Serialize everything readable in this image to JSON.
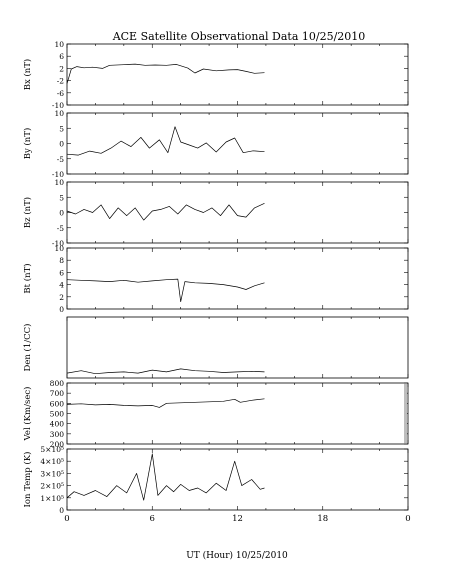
{
  "figure": {
    "title": "ACE Satellite Observational Data   10/25/2010",
    "x_label": "UT (Hour)   10/25/2010",
    "x_ticks": [
      "0",
      "6",
      "12",
      "18",
      "0"
    ]
  },
  "chart_data": [
    {
      "type": "line",
      "ylabel": "Bx (nT)",
      "xlim": [
        0,
        24
      ],
      "ylim": [
        -10,
        10
      ],
      "yticks": [
        "10",
        "6",
        "2",
        "-2",
        "-6",
        "-10"
      ],
      "grid": false,
      "series": [
        {
          "values": [
            [
              0.0,
              -3
            ],
            [
              0.3,
              1.8
            ],
            [
              0.7,
              2.6
            ],
            [
              1.2,
              2.2
            ],
            [
              1.8,
              2.4
            ],
            [
              2.5,
              2.0
            ],
            [
              3.0,
              3.0
            ],
            [
              4.0,
              3.2
            ],
            [
              4.8,
              3.4
            ],
            [
              5.5,
              3.0
            ],
            [
              6.2,
              3.1
            ],
            [
              7.0,
              3.0
            ],
            [
              7.7,
              3.3
            ],
            [
              8.5,
              2.1
            ],
            [
              9.0,
              0.5
            ],
            [
              9.6,
              1.8
            ],
            [
              10.5,
              1.2
            ],
            [
              11.4,
              1.5
            ],
            [
              12.0,
              1.6
            ],
            [
              12.6,
              1.0
            ],
            [
              13.2,
              0.4
            ],
            [
              13.9,
              0.6
            ]
          ]
        }
      ]
    },
    {
      "type": "line",
      "ylabel": "By (nT)",
      "xlim": [
        0,
        24
      ],
      "ylim": [
        -10,
        10
      ],
      "yticks": [
        "10",
        "5",
        "0",
        "-5",
        "-10"
      ],
      "grid": false,
      "series": [
        {
          "values": [
            [
              0.0,
              -3.5
            ],
            [
              0.8,
              -3.8
            ],
            [
              1.6,
              -2.5
            ],
            [
              2.4,
              -3.2
            ],
            [
              3.1,
              -1.5
            ],
            [
              3.8,
              0.8
            ],
            [
              4.5,
              -1.0
            ],
            [
              5.2,
              2.0
            ],
            [
              5.8,
              -1.5
            ],
            [
              6.5,
              1.2
            ],
            [
              7.1,
              -3.0
            ],
            [
              7.6,
              5.5
            ],
            [
              8.0,
              0.5
            ],
            [
              8.6,
              -0.5
            ],
            [
              9.2,
              -1.5
            ],
            [
              9.8,
              0.2
            ],
            [
              10.5,
              -2.8
            ],
            [
              11.2,
              0.5
            ],
            [
              11.8,
              1.8
            ],
            [
              12.4,
              -3.0
            ],
            [
              13.1,
              -2.4
            ],
            [
              13.9,
              -2.7
            ]
          ]
        }
      ]
    },
    {
      "type": "line",
      "ylabel": "Bz (nT)",
      "xlim": [
        0,
        24
      ],
      "ylim": [
        -10,
        10
      ],
      "yticks": [
        "10",
        "5",
        "0",
        "-5",
        "-10"
      ],
      "grid": false,
      "series": [
        {
          "values": [
            [
              0.0,
              0.5
            ],
            [
              0.6,
              -0.5
            ],
            [
              1.2,
              1.0
            ],
            [
              1.8,
              0.0
            ],
            [
              2.4,
              2.5
            ],
            [
              3.0,
              -2.0
            ],
            [
              3.6,
              1.5
            ],
            [
              4.2,
              -1.0
            ],
            [
              4.8,
              1.5
            ],
            [
              5.4,
              -2.5
            ],
            [
              6.0,
              0.5
            ],
            [
              6.6,
              1.0
            ],
            [
              7.2,
              2.0
            ],
            [
              7.8,
              -0.5
            ],
            [
              8.4,
              2.5
            ],
            [
              9.0,
              1.0
            ],
            [
              9.6,
              0.0
            ],
            [
              10.2,
              1.5
            ],
            [
              10.8,
              -1.0
            ],
            [
              11.4,
              2.5
            ],
            [
              12.0,
              -1.0
            ],
            [
              12.6,
              -1.5
            ],
            [
              13.2,
              1.5
            ],
            [
              13.9,
              3.0
            ]
          ]
        }
      ]
    },
    {
      "type": "line",
      "ylabel": "Bt (nT)",
      "xlim": [
        0,
        24
      ],
      "ylim": [
        0,
        10
      ],
      "yticks": [
        "10",
        "8",
        "6",
        "4",
        "2",
        "0"
      ],
      "grid": false,
      "series": [
        {
          "values": [
            [
              0.0,
              4.8
            ],
            [
              1.0,
              4.7
            ],
            [
              2.0,
              4.6
            ],
            [
              3.0,
              4.5
            ],
            [
              4.0,
              4.7
            ],
            [
              5.0,
              4.4
            ],
            [
              6.0,
              4.6
            ],
            [
              7.0,
              4.8
            ],
            [
              7.8,
              4.9
            ],
            [
              8.0,
              1.2
            ],
            [
              8.3,
              4.5
            ],
            [
              9.0,
              4.3
            ],
            [
              10.0,
              4.2
            ],
            [
              11.0,
              4.0
            ],
            [
              12.0,
              3.6
            ],
            [
              12.6,
              3.2
            ],
            [
              13.2,
              3.8
            ],
            [
              13.9,
              4.3
            ]
          ]
        }
      ]
    },
    {
      "type": "line",
      "ylabel": "Den (1/CC)",
      "xlim": [
        0,
        24
      ],
      "ylim": [
        0,
        10
      ],
      "yticks": [],
      "grid": false,
      "series": [
        {
          "values": [
            [
              0.0,
              0.8
            ],
            [
              1.0,
              1.2
            ],
            [
              2.0,
              0.7
            ],
            [
              3.0,
              0.9
            ],
            [
              4.0,
              1.0
            ],
            [
              5.0,
              0.8
            ],
            [
              6.0,
              1.3
            ],
            [
              7.0,
              1.0
            ],
            [
              8.0,
              1.5
            ],
            [
              9.0,
              1.2
            ],
            [
              10.0,
              1.1
            ],
            [
              11.0,
              0.9
            ],
            [
              12.0,
              1.0
            ],
            [
              13.0,
              1.1
            ],
            [
              13.9,
              1.0
            ]
          ]
        }
      ]
    },
    {
      "type": "line",
      "ylabel": "Vel (Km/sec)",
      "xlim": [
        0,
        24
      ],
      "ylim": [
        200,
        800
      ],
      "yticks": [
        "800",
        "700",
        "600",
        "500",
        "400",
        "300",
        "200"
      ],
      "grid": false,
      "series": [
        {
          "values": [
            [
              0.0,
              590
            ],
            [
              1.0,
              595
            ],
            [
              2.0,
              585
            ],
            [
              3.0,
              590
            ],
            [
              4.0,
              580
            ],
            [
              5.0,
              575
            ],
            [
              6.0,
              580
            ],
            [
              6.5,
              560
            ],
            [
              7.0,
              600
            ],
            [
              8.0,
              605
            ],
            [
              9.0,
              610
            ],
            [
              10.0,
              615
            ],
            [
              11.0,
              620
            ],
            [
              11.8,
              640
            ],
            [
              12.2,
              610
            ],
            [
              13.0,
              630
            ],
            [
              13.9,
              645
            ]
          ]
        }
      ]
    },
    {
      "type": "line",
      "ylabel": "Ion Temp (K)",
      "xlim": [
        0,
        24
      ],
      "ylim": [
        0,
        500000
      ],
      "yticks": [
        "5×10⁵",
        "4×10⁵",
        "3×10⁵",
        "2×10⁵",
        "1×10⁵",
        "0"
      ],
      "grid": false,
      "series": [
        {
          "values": [
            [
              0.0,
              100000
            ],
            [
              0.5,
              150000
            ],
            [
              1.2,
              120000
            ],
            [
              2.0,
              160000
            ],
            [
              2.8,
              110000
            ],
            [
              3.5,
              200000
            ],
            [
              4.2,
              140000
            ],
            [
              4.9,
              300000
            ],
            [
              5.4,
              80000
            ],
            [
              6.0,
              460000
            ],
            [
              6.4,
              120000
            ],
            [
              7.0,
              200000
            ],
            [
              7.5,
              150000
            ],
            [
              8.0,
              210000
            ],
            [
              8.6,
              160000
            ],
            [
              9.2,
              180000
            ],
            [
              9.8,
              140000
            ],
            [
              10.5,
              220000
            ],
            [
              11.2,
              160000
            ],
            [
              11.8,
              400000
            ],
            [
              12.3,
              200000
            ],
            [
              13.0,
              250000
            ],
            [
              13.6,
              170000
            ],
            [
              13.9,
              180000
            ]
          ]
        }
      ]
    }
  ]
}
